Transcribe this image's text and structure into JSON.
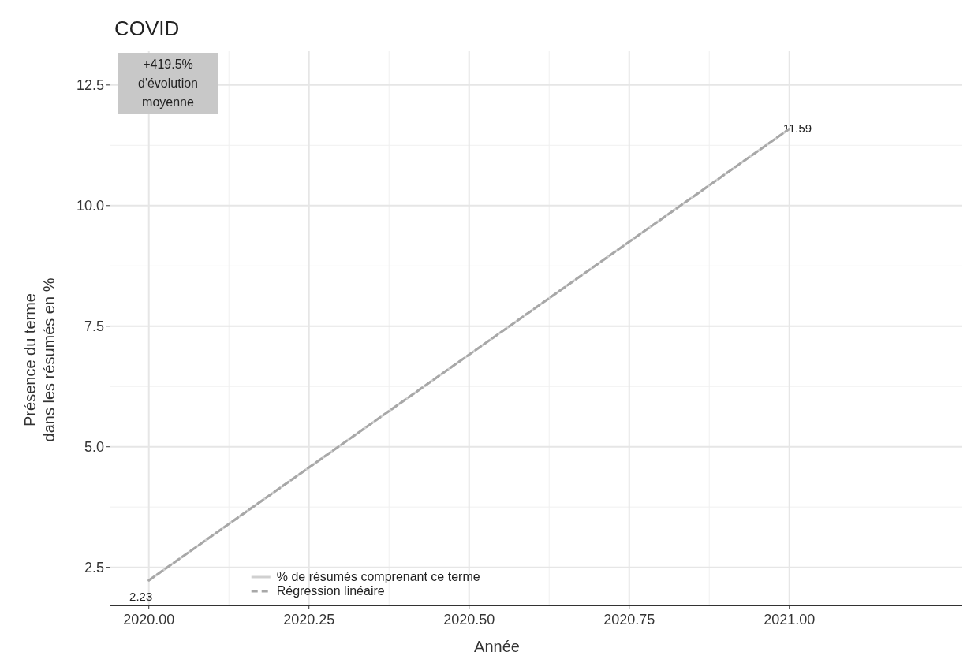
{
  "chart_data": {
    "type": "line",
    "title": "COVID",
    "xlabel": "Année",
    "ylabel": "Présence du terme\ndans les résumés en %",
    "x": [
      2020,
      2021
    ],
    "series": [
      {
        "name": "% de résumés comprenant ce terme",
        "color": "#d0d0d0",
        "values": [
          2.23,
          11.59
        ],
        "value_labels": [
          "2.23",
          "11.59"
        ],
        "line_style": "solid"
      },
      {
        "name": "Régression linéaire",
        "type": "line",
        "color": "#a8a8a8",
        "values": [
          2.23,
          11.59
        ],
        "line_style": "dashed"
      }
    ],
    "annotations": [
      "+419.5%\nd'évolution\nmoyenne"
    ],
    "xlim": [
      2019.94,
      2021.27
    ],
    "xticks": [
      {
        "value": 2020,
        "label": "2020.00"
      },
      {
        "value": 2020.25,
        "label": "2020.25"
      },
      {
        "value": 2020.5,
        "label": "2020.50"
      },
      {
        "value": 2020.75,
        "label": "2020.75"
      },
      {
        "value": 2021,
        "label": "2021.00"
      }
    ],
    "ylim": [
      1.71,
      13.2
    ],
    "yticks": [
      {
        "value": 2.5,
        "label": "2.5"
      },
      {
        "value": 5,
        "label": "5.0"
      },
      {
        "value": 7.5,
        "label": "7.5"
      },
      {
        "value": 10,
        "label": "10.0"
      },
      {
        "value": 12.5,
        "label": "12.5"
      }
    ],
    "grid": true,
    "legend": "bottom left"
  }
}
